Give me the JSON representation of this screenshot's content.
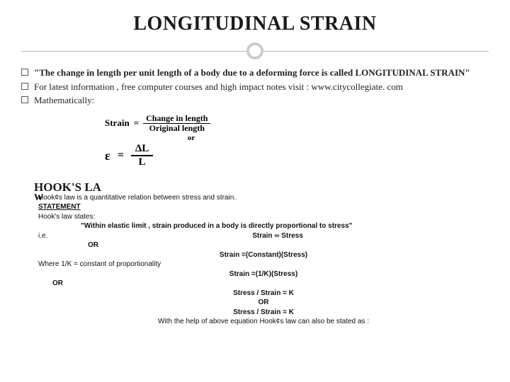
{
  "title": "LONGITUDINAL STRAIN",
  "bullets": [
    {
      "html": "<b>\"The change in length per unit length of a body due to a deforming force is called LONGITUDINAL STRAIN\"</b>"
    },
    {
      "html": "For latest information , free computer courses and high impact notes visit : www.citycollegiate. com"
    },
    {
      "html": "Mathematically:"
    }
  ],
  "formula": {
    "label": "Strain",
    "eq": "=",
    "num1": "Change in length",
    "den1": "Original length",
    "or": "or",
    "eps": "ε",
    "num2": "ΔL",
    "den2": "L"
  },
  "hook": {
    "heading": "HOOK'S LA",
    "wline": "W",
    "intro": "Hook¢s law is a quantitative relation between stress and strain.",
    "stmt_label": "STATEMENT",
    "states": "Hook's law states:",
    "quote": "\"Within elastic limit , strain produced in a body is directly proportional to stress\"",
    "ie": "i.e.",
    "rel1": "Strain ∞ Stress",
    "or1": "OR",
    "rel2": "Strain =(Constant)(Stress)",
    "where": "Where 1/K = constant of proportionality",
    "rel3": "Strain =(1/K)(Stress)",
    "or2": "OR",
    "rel4": "Stress / Strain = K",
    "or3": "OR",
    "rel5": "Stress / Strain = K",
    "tail": "With the help of above equation Hook¢s law can also be stated as :"
  },
  "colors": {
    "text": "#1a1a1a",
    "divider": "#bbbbbb",
    "circle": "#cccccc",
    "bg": "#ffffff"
  }
}
